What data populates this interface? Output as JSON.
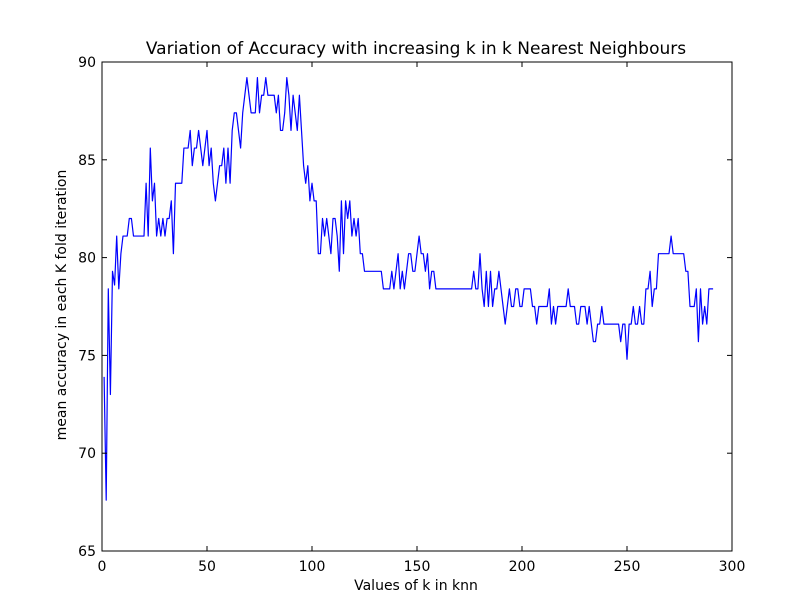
{
  "chart_data": {
    "type": "line",
    "title": "Variation of Accuracy with increasing k in k Nearest Neighbours",
    "xlabel": "Values of k in knn",
    "ylabel": "mean accuracy in each K fold iteration",
    "xlim": [
      0,
      300
    ],
    "ylim": [
      65,
      90
    ],
    "xticks": [
      0,
      50,
      100,
      150,
      200,
      250,
      300
    ],
    "yticks": [
      65,
      70,
      75,
      80,
      85,
      90
    ],
    "grid": false,
    "line_color": "#0000ff",
    "series": [
      {
        "name": "mean accuracy",
        "points": [
          [
            1,
            73.9
          ],
          [
            2,
            67.6
          ],
          [
            3,
            78.4
          ],
          [
            4,
            73.0
          ],
          [
            5,
            79.3
          ],
          [
            6,
            78.6
          ],
          [
            7,
            81.1
          ],
          [
            8,
            78.4
          ],
          [
            9,
            80.2
          ],
          [
            10,
            81.1
          ],
          [
            12,
            81.1
          ],
          [
            13,
            82.0
          ],
          [
            14,
            82.0
          ],
          [
            15,
            81.1
          ],
          [
            18,
            81.1
          ],
          [
            20,
            81.1
          ],
          [
            21,
            83.8
          ],
          [
            22,
            81.1
          ],
          [
            23,
            85.6
          ],
          [
            24,
            82.9
          ],
          [
            25,
            83.8
          ],
          [
            26,
            81.1
          ],
          [
            27,
            82.0
          ],
          [
            28,
            81.1
          ],
          [
            29,
            82.0
          ],
          [
            30,
            81.1
          ],
          [
            31,
            82.0
          ],
          [
            32,
            82.0
          ],
          [
            33,
            82.9
          ],
          [
            34,
            80.2
          ],
          [
            35,
            83.8
          ],
          [
            38,
            83.8
          ],
          [
            39,
            85.6
          ],
          [
            41,
            85.6
          ],
          [
            42,
            86.5
          ],
          [
            43,
            84.7
          ],
          [
            44,
            85.6
          ],
          [
            45,
            85.6
          ],
          [
            46,
            86.5
          ],
          [
            47,
            85.6
          ],
          [
            48,
            84.7
          ],
          [
            49,
            85.6
          ],
          [
            50,
            86.5
          ],
          [
            51,
            84.7
          ],
          [
            52,
            85.6
          ],
          [
            53,
            83.8
          ],
          [
            54,
            82.9
          ],
          [
            55,
            83.8
          ],
          [
            56,
            84.7
          ],
          [
            57,
            84.7
          ],
          [
            58,
            85.6
          ],
          [
            59,
            83.8
          ],
          [
            60,
            85.6
          ],
          [
            61,
            83.8
          ],
          [
            62,
            86.5
          ],
          [
            63,
            87.4
          ],
          [
            64,
            87.4
          ],
          [
            65,
            86.5
          ],
          [
            66,
            85.6
          ],
          [
            67,
            87.4
          ],
          [
            68,
            88.3
          ],
          [
            69,
            89.2
          ],
          [
            70,
            88.3
          ],
          [
            71,
            87.4
          ],
          [
            72,
            87.4
          ],
          [
            73,
            87.4
          ],
          [
            74,
            89.2
          ],
          [
            75,
            87.4
          ],
          [
            76,
            88.3
          ],
          [
            77,
            88.3
          ],
          [
            78,
            89.2
          ],
          [
            79,
            88.3
          ],
          [
            80,
            88.3
          ],
          [
            81,
            88.3
          ],
          [
            82,
            88.3
          ],
          [
            83,
            87.4
          ],
          [
            84,
            88.3
          ],
          [
            85,
            86.5
          ],
          [
            86,
            86.5
          ],
          [
            87,
            87.4
          ],
          [
            88,
            89.2
          ],
          [
            89,
            88.3
          ],
          [
            90,
            86.5
          ],
          [
            91,
            88.3
          ],
          [
            92,
            87.4
          ],
          [
            93,
            86.5
          ],
          [
            94,
            88.3
          ],
          [
            95,
            86.5
          ],
          [
            96,
            84.7
          ],
          [
            97,
            83.8
          ],
          [
            98,
            84.7
          ],
          [
            99,
            82.9
          ],
          [
            100,
            83.8
          ],
          [
            101,
            82.9
          ],
          [
            102,
            82.9
          ],
          [
            103,
            80.2
          ],
          [
            104,
            80.2
          ],
          [
            105,
            82.0
          ],
          [
            106,
            81.1
          ],
          [
            107,
            82.0
          ],
          [
            108,
            81.1
          ],
          [
            109,
            80.2
          ],
          [
            110,
            82.0
          ],
          [
            111,
            82.0
          ],
          [
            112,
            81.1
          ],
          [
            113,
            79.3
          ],
          [
            114,
            82.9
          ],
          [
            115,
            80.2
          ],
          [
            116,
            82.9
          ],
          [
            117,
            82.0
          ],
          [
            118,
            82.9
          ],
          [
            119,
            81.1
          ],
          [
            120,
            82.0
          ],
          [
            121,
            81.1
          ],
          [
            122,
            82.0
          ],
          [
            123,
            80.2
          ],
          [
            124,
            80.2
          ],
          [
            125,
            79.3
          ],
          [
            127,
            79.3
          ],
          [
            130,
            79.3
          ],
          [
            133,
            79.3
          ],
          [
            134,
            78.4
          ],
          [
            137,
            78.4
          ],
          [
            138,
            79.3
          ],
          [
            139,
            78.4
          ],
          [
            140,
            79.3
          ],
          [
            141,
            80.2
          ],
          [
            142,
            78.4
          ],
          [
            143,
            79.3
          ],
          [
            144,
            78.4
          ],
          [
            145,
            79.3
          ],
          [
            146,
            80.2
          ],
          [
            147,
            80.2
          ],
          [
            148,
            79.3
          ],
          [
            149,
            79.3
          ],
          [
            150,
            80.2
          ],
          [
            151,
            81.1
          ],
          [
            152,
            80.2
          ],
          [
            153,
            80.2
          ],
          [
            154,
            79.3
          ],
          [
            155,
            80.2
          ],
          [
            156,
            78.4
          ],
          [
            157,
            79.3
          ],
          [
            158,
            79.3
          ],
          [
            159,
            78.4
          ],
          [
            165,
            78.4
          ],
          [
            170,
            78.4
          ],
          [
            176,
            78.4
          ],
          [
            177,
            79.3
          ],
          [
            178,
            78.4
          ],
          [
            179,
            78.4
          ],
          [
            180,
            80.2
          ],
          [
            181,
            78.4
          ],
          [
            182,
            77.5
          ],
          [
            183,
            79.3
          ],
          [
            184,
            77.5
          ],
          [
            185,
            79.3
          ],
          [
            186,
            77.5
          ],
          [
            187,
            78.4
          ],
          [
            188,
            78.4
          ],
          [
            189,
            79.3
          ],
          [
            190,
            78.4
          ],
          [
            191,
            77.5
          ],
          [
            192,
            76.6
          ],
          [
            193,
            77.5
          ],
          [
            194,
            78.4
          ],
          [
            195,
            77.5
          ],
          [
            196,
            77.5
          ],
          [
            197,
            78.4
          ],
          [
            198,
            78.4
          ],
          [
            199,
            77.5
          ],
          [
            200,
            77.5
          ],
          [
            201,
            78.4
          ],
          [
            204,
            78.4
          ],
          [
            205,
            77.5
          ],
          [
            206,
            77.5
          ],
          [
            207,
            76.6
          ],
          [
            208,
            77.5
          ],
          [
            210,
            77.5
          ],
          [
            211,
            77.5
          ],
          [
            212,
            77.5
          ],
          [
            213,
            78.4
          ],
          [
            214,
            76.6
          ],
          [
            215,
            77.5
          ],
          [
            216,
            76.6
          ],
          [
            217,
            77.5
          ],
          [
            221,
            77.5
          ],
          [
            222,
            78.4
          ],
          [
            223,
            77.5
          ],
          [
            225,
            77.5
          ],
          [
            226,
            76.6
          ],
          [
            227,
            76.6
          ],
          [
            228,
            77.5
          ],
          [
            229,
            77.5
          ],
          [
            230,
            77.5
          ],
          [
            231,
            76.6
          ],
          [
            232,
            77.5
          ],
          [
            233,
            76.6
          ],
          [
            234,
            75.7
          ],
          [
            235,
            75.7
          ],
          [
            236,
            76.6
          ],
          [
            237,
            76.6
          ],
          [
            238,
            77.5
          ],
          [
            239,
            76.6
          ],
          [
            241,
            76.6
          ],
          [
            246,
            76.6
          ],
          [
            247,
            75.7
          ],
          [
            248,
            76.6
          ],
          [
            249,
            76.6
          ],
          [
            250,
            74.8
          ],
          [
            251,
            76.6
          ],
          [
            252,
            76.6
          ],
          [
            253,
            77.5
          ],
          [
            254,
            76.6
          ],
          [
            255,
            76.6
          ],
          [
            256,
            77.5
          ],
          [
            257,
            76.6
          ],
          [
            258,
            76.6
          ],
          [
            259,
            78.4
          ],
          [
            260,
            78.4
          ],
          [
            261,
            79.3
          ],
          [
            262,
            77.5
          ],
          [
            263,
            78.4
          ],
          [
            264,
            78.4
          ],
          [
            265,
            80.2
          ],
          [
            270,
            80.2
          ],
          [
            271,
            81.1
          ],
          [
            272,
            80.2
          ],
          [
            277,
            80.2
          ],
          [
            278,
            79.3
          ],
          [
            279,
            79.3
          ],
          [
            280,
            77.5
          ],
          [
            281,
            77.5
          ],
          [
            282,
            77.5
          ],
          [
            283,
            78.4
          ],
          [
            284,
            75.7
          ],
          [
            285,
            78.4
          ],
          [
            286,
            76.6
          ],
          [
            287,
            77.5
          ],
          [
            288,
            76.6
          ],
          [
            289,
            78.4
          ],
          [
            290,
            78.4
          ],
          [
            291,
            78.4
          ]
        ]
      }
    ]
  }
}
